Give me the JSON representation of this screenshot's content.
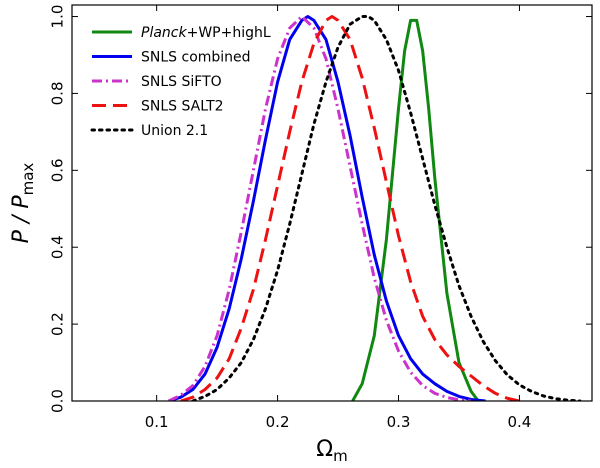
{
  "chart_data": {
    "type": "line",
    "title": "",
    "xlabel": "Ω",
    "xlabel_sub": "m",
    "ylabel": "P / P",
    "ylabel_sub": "max",
    "xlim": [
      0.03,
      0.46
    ],
    "ylim": [
      0.0,
      1.03
    ],
    "xticks": [
      {
        "value": 0.1,
        "label": "0.1"
      },
      {
        "value": 0.2,
        "label": "0.2"
      },
      {
        "value": 0.3,
        "label": "0.3"
      },
      {
        "value": 0.4,
        "label": "0.4"
      }
    ],
    "yticks": [
      {
        "value": 0.0,
        "label": "0.0"
      },
      {
        "value": 0.2,
        "label": "0.2"
      },
      {
        "value": 0.4,
        "label": "0.4"
      },
      {
        "value": 0.6,
        "label": "0.6"
      },
      {
        "value": 0.8,
        "label": "0.8"
      },
      {
        "value": 1.0,
        "label": "1.0"
      }
    ],
    "legend_position": "top-left",
    "series": [
      {
        "name": "Planck+WP+highL",
        "name_italic_part": "Planck",
        "name_rest": "+WP+highL",
        "color": "#118811",
        "style": "solid",
        "x": [
          0.262,
          0.27,
          0.28,
          0.29,
          0.3,
          0.305,
          0.31,
          0.315,
          0.32,
          0.325,
          0.33,
          0.34,
          0.35,
          0.36,
          0.366
        ],
        "y": [
          0.0,
          0.045,
          0.17,
          0.42,
          0.76,
          0.91,
          0.99,
          0.99,
          0.91,
          0.76,
          0.58,
          0.28,
          0.1,
          0.025,
          0.0
        ]
      },
      {
        "name": "SNLS combined",
        "color": "#0000ee",
        "style": "solid",
        "x": [
          0.11,
          0.12,
          0.13,
          0.14,
          0.15,
          0.16,
          0.17,
          0.18,
          0.19,
          0.2,
          0.21,
          0.22,
          0.225,
          0.23,
          0.24,
          0.25,
          0.26,
          0.27,
          0.28,
          0.29,
          0.3,
          0.31,
          0.32,
          0.33,
          0.34,
          0.35,
          0.36,
          0.372
        ],
        "y": [
          0.0,
          0.01,
          0.03,
          0.07,
          0.14,
          0.24,
          0.37,
          0.52,
          0.68,
          0.83,
          0.94,
          0.99,
          1.0,
          0.99,
          0.94,
          0.83,
          0.69,
          0.53,
          0.38,
          0.26,
          0.17,
          0.11,
          0.07,
          0.045,
          0.025,
          0.012,
          0.004,
          0.0
        ]
      },
      {
        "name": "SNLS SiFTO",
        "color": "#cc33cc",
        "style": "dashdot",
        "x": [
          0.11,
          0.12,
          0.13,
          0.14,
          0.15,
          0.16,
          0.17,
          0.18,
          0.19,
          0.2,
          0.21,
          0.22,
          0.23,
          0.24,
          0.25,
          0.26,
          0.27,
          0.28,
          0.29,
          0.3,
          0.31,
          0.32,
          0.33,
          0.34,
          0.35,
          0.36
        ],
        "y": [
          0.0,
          0.015,
          0.04,
          0.09,
          0.17,
          0.29,
          0.44,
          0.6,
          0.76,
          0.89,
          0.97,
          1.0,
          0.97,
          0.89,
          0.76,
          0.61,
          0.46,
          0.32,
          0.21,
          0.13,
          0.075,
          0.04,
          0.02,
          0.009,
          0.003,
          0.0
        ]
      },
      {
        "name": "SNLS SALT2",
        "color": "#ee1111",
        "style": "dashed",
        "x": [
          0.12,
          0.13,
          0.14,
          0.15,
          0.16,
          0.17,
          0.18,
          0.19,
          0.2,
          0.21,
          0.22,
          0.23,
          0.24,
          0.245,
          0.25,
          0.26,
          0.27,
          0.28,
          0.29,
          0.3,
          0.31,
          0.32,
          0.33,
          0.34,
          0.35,
          0.36,
          0.37,
          0.38,
          0.39,
          0.4
        ],
        "y": [
          0.0,
          0.01,
          0.03,
          0.06,
          0.11,
          0.19,
          0.29,
          0.42,
          0.56,
          0.7,
          0.83,
          0.93,
          0.99,
          1.0,
          0.99,
          0.94,
          0.84,
          0.71,
          0.57,
          0.43,
          0.31,
          0.22,
          0.16,
          0.12,
          0.09,
          0.065,
          0.04,
          0.02,
          0.007,
          0.0
        ]
      },
      {
        "name": "Union 2.1",
        "color": "#000000",
        "style": "dotted",
        "x": [
          0.13,
          0.14,
          0.15,
          0.16,
          0.17,
          0.18,
          0.19,
          0.2,
          0.21,
          0.22,
          0.23,
          0.24,
          0.25,
          0.26,
          0.27,
          0.275,
          0.28,
          0.29,
          0.3,
          0.31,
          0.32,
          0.33,
          0.34,
          0.35,
          0.36,
          0.37,
          0.38,
          0.39,
          0.4,
          0.41,
          0.42,
          0.43,
          0.44,
          0.45
        ],
        "y": [
          0.0,
          0.012,
          0.03,
          0.06,
          0.1,
          0.16,
          0.24,
          0.34,
          0.46,
          0.59,
          0.72,
          0.83,
          0.92,
          0.98,
          1.0,
          1.0,
          0.99,
          0.94,
          0.86,
          0.75,
          0.63,
          0.51,
          0.4,
          0.3,
          0.22,
          0.155,
          0.105,
          0.068,
          0.042,
          0.025,
          0.013,
          0.006,
          0.002,
          0.0
        ]
      }
    ]
  }
}
